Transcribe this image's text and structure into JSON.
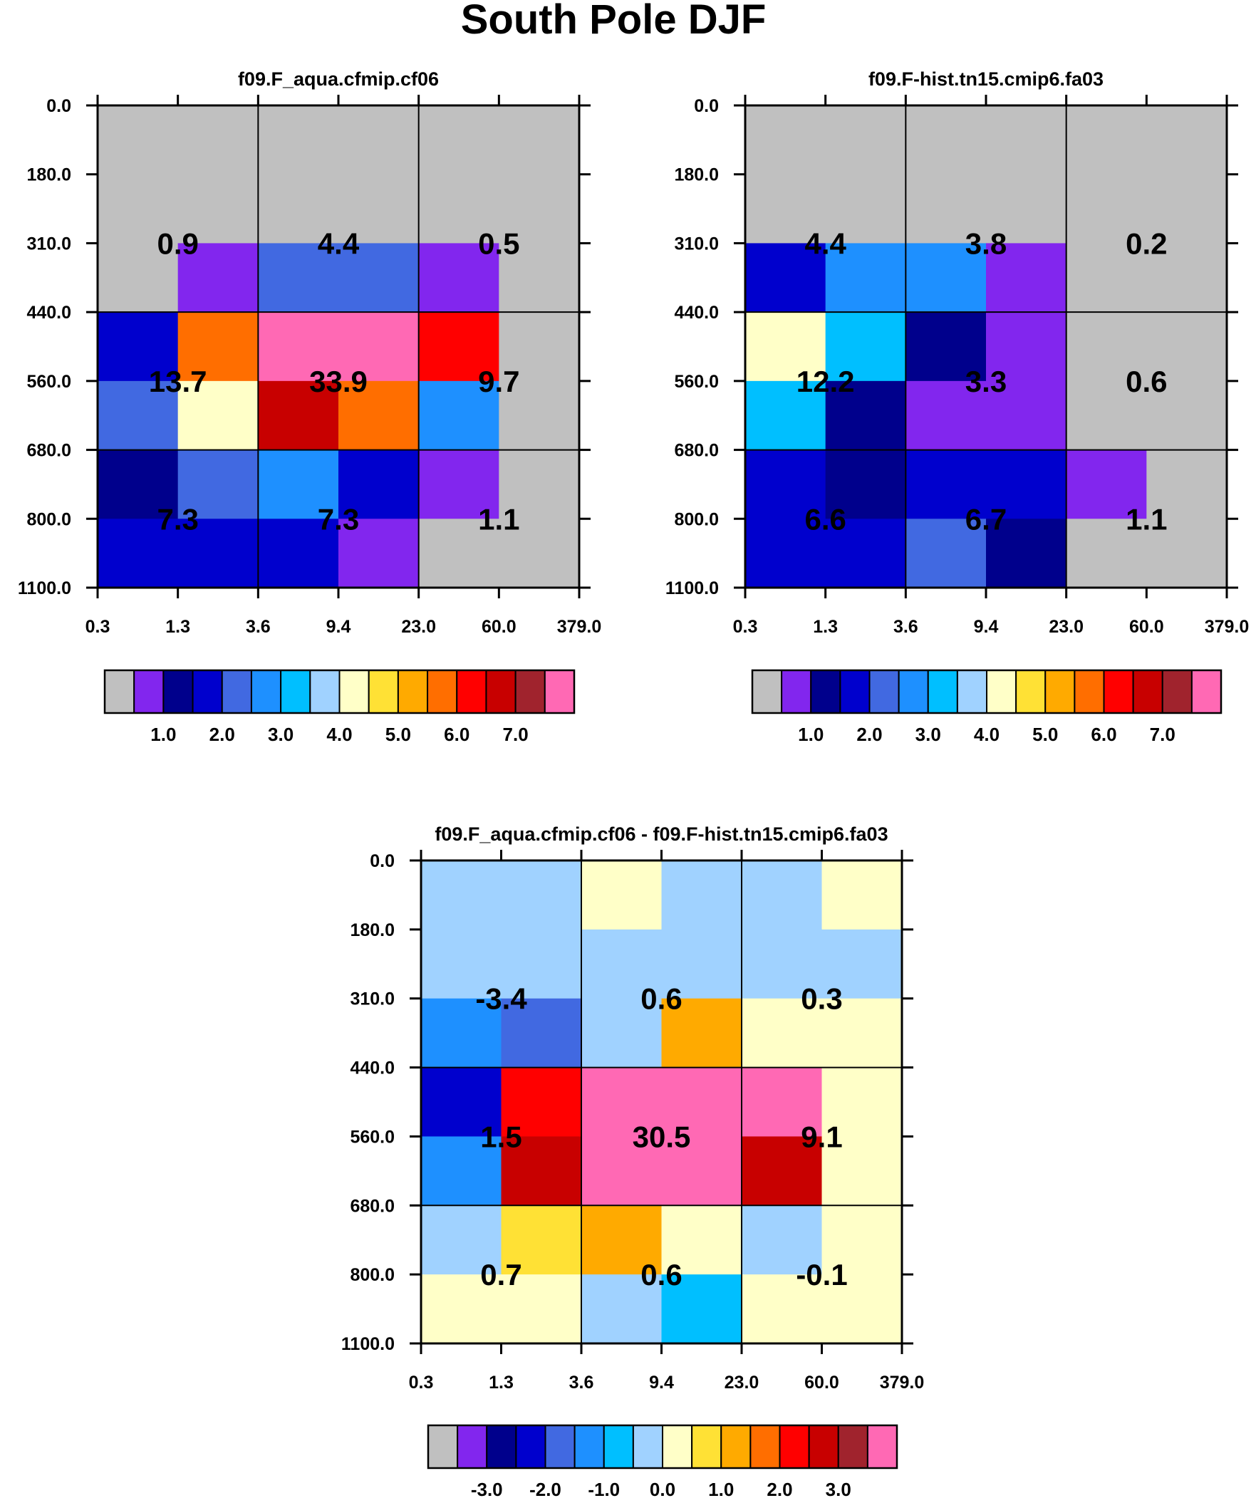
{
  "chart_data": {
    "type": "heatmap",
    "title": "South Pole DJF",
    "x_ticks": [
      "0.3",
      "1.3",
      "3.6",
      "9.4",
      "23.0",
      "60.0",
      "379.0"
    ],
    "y_ticks": [
      "0.0",
      "180.0",
      "310.0",
      "440.0",
      "560.0",
      "680.0",
      "800.0",
      "1100.0"
    ],
    "panels": [
      {
        "title": "f09.F_aqua.cfmip.cf06",
        "colorbar": {
          "palette": "abs",
          "labels": [
            "1.0",
            "2.0",
            "3.0",
            "4.0",
            "5.0",
            "6.0",
            "7.0"
          ]
        },
        "cell_colors": [
          [
            0,
            0,
            0,
            0,
            0,
            0
          ],
          [
            0,
            0,
            0,
            0,
            0,
            0
          ],
          [
            0,
            1,
            4,
            4,
            1,
            0
          ],
          [
            3,
            11,
            15,
            15,
            12,
            0
          ],
          [
            4,
            8,
            13,
            11,
            5,
            0
          ],
          [
            2,
            4,
            5,
            3,
            1,
            0
          ],
          [
            3,
            3,
            3,
            1,
            0,
            0
          ]
        ],
        "group_values": [
          [
            "0.9",
            "4.4",
            "0.5"
          ],
          [
            "13.7",
            "33.9",
            "9.7"
          ],
          [
            "7.3",
            "7.3",
            "1.1"
          ]
        ]
      },
      {
        "title": "f09.F-hist.tn15.cmip6.fa03",
        "colorbar": {
          "palette": "abs",
          "labels": [
            "1.0",
            "2.0",
            "3.0",
            "4.0",
            "5.0",
            "6.0",
            "7.0"
          ]
        },
        "cell_colors": [
          [
            0,
            0,
            0,
            0,
            0,
            0
          ],
          [
            0,
            0,
            0,
            0,
            0,
            0
          ],
          [
            3,
            5,
            5,
            1,
            0,
            0
          ],
          [
            8,
            6,
            2,
            1,
            0,
            0
          ],
          [
            6,
            2,
            1,
            1,
            0,
            0
          ],
          [
            3,
            2,
            3,
            3,
            1,
            0
          ],
          [
            3,
            3,
            4,
            2,
            0,
            0
          ]
        ],
        "group_values": [
          [
            "4.4",
            "3.8",
            "0.2"
          ],
          [
            "12.2",
            "3.3",
            "0.6"
          ],
          [
            "6.6",
            "6.7",
            "1.1"
          ]
        ]
      },
      {
        "title": "f09.F_aqua.cfmip.cf06 - f09.F-hist.tn15.cmip6.fa03",
        "colorbar": {
          "palette": "diff",
          "labels": [
            "-3.0",
            "-2.0",
            "-1.0",
            "0.0",
            "1.0",
            "2.0",
            "3.0"
          ]
        },
        "cell_colors": [
          [
            7,
            7,
            8,
            7,
            7,
            8
          ],
          [
            7,
            7,
            7,
            7,
            7,
            7
          ],
          [
            5,
            4,
            7,
            10,
            8,
            8
          ],
          [
            3,
            12,
            15,
            15,
            15,
            8
          ],
          [
            5,
            13,
            15,
            15,
            13,
            8
          ],
          [
            7,
            9,
            10,
            8,
            7,
            8
          ],
          [
            8,
            8,
            7,
            6,
            8,
            8
          ]
        ],
        "group_values": [
          [
            "-3.4",
            "0.6",
            "0.3"
          ],
          [
            "1.5",
            "30.5",
            "9.1"
          ],
          [
            "0.7",
            "0.6",
            "-0.1"
          ]
        ]
      }
    ],
    "palette_colors": [
      "#c0c0c0",
      "#8226ee",
      "#00008c",
      "#0000cd",
      "#4169e1",
      "#1e90ff",
      "#00bfff",
      "#a0d2ff",
      "#ffffc8",
      "#ffe135",
      "#ffaa00",
      "#ff6e00",
      "#ff0000",
      "#c80000",
      "#a0232d",
      "#ff69b4"
    ]
  }
}
